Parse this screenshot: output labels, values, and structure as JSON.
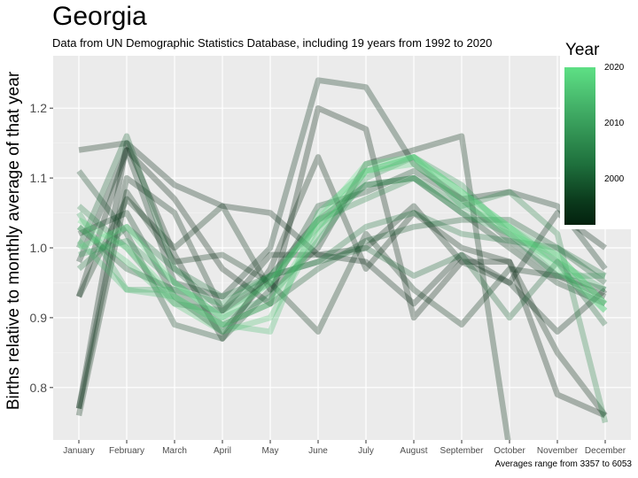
{
  "header": {
    "title": "Georgia",
    "subtitle": "Data from UN Demographic Statistics Database, including 19 years from 1992 to 2020"
  },
  "caption": "Averages range from 3357 to 6053",
  "legend": {
    "title": "Year",
    "ticks": [
      "2020",
      "2010",
      "2000"
    ],
    "color_new": "#5ee085",
    "color_old": "#03210e"
  },
  "chart_data": {
    "type": "line",
    "categories": [
      "January",
      "February",
      "March",
      "April",
      "May",
      "June",
      "July",
      "August",
      "September",
      "October",
      "November",
      "December"
    ],
    "ylabel": "Births relative to monthly average of that year",
    "xlabel": "",
    "ylim": [
      0.725,
      1.275
    ],
    "yticks": [
      0.8,
      0.9,
      1.0,
      1.1,
      1.2
    ],
    "grid": true,
    "legend_position": "right",
    "series": [
      {
        "year": 1992,
        "values": [
          0.93,
          1.14,
          1.07,
          0.97,
          0.92,
          1.2,
          1.17,
          0.9,
          0.98,
          0.98,
          0.79,
          0.76
        ]
      },
      {
        "year": 1993,
        "values": [
          0.77,
          1.15,
          1.09,
          1.06,
          1.05,
          0.99,
          0.98,
          0.92,
          0.99,
          0.95,
          1.05,
          1.0
        ]
      },
      {
        "year": 1994,
        "values": [
          1.14,
          1.15,
          0.99,
          0.87,
          0.97,
          1.13,
          0.97,
          1.05,
          1.0,
          0.98,
          0.85,
          0.76
        ]
      },
      {
        "year": 1995,
        "values": [
          0.77,
          1.1,
          1.05,
          0.91,
          0.99,
          0.99,
          1.0,
          1.06,
          0.98,
          0.95,
          0.88,
          0.94
        ]
      },
      {
        "year": 1996,
        "values": [
          0.93,
          1.07,
          1.0,
          1.06,
          0.94,
          1.0,
          1.12,
          1.14,
          1.16,
          0.71,
          0.72,
          0.72
        ]
      },
      {
        "year": 1997,
        "values": [
          0.98,
          1.14,
          0.95,
          0.93,
          1.0,
          1.24,
          1.23,
          1.12,
          1.07,
          1.08,
          1.06,
          0.97
        ]
      },
      {
        "year": 1998,
        "values": [
          0.76,
          1.08,
          0.98,
          0.99,
          0.95,
          0.88,
          1.02,
          0.94,
          0.89,
          0.97,
          0.96,
          0.93
        ]
      },
      {
        "year": 2000,
        "values": [
          1.02,
          1.05,
          0.93,
          0.88,
          0.96,
          1.04,
          1.09,
          1.1,
          1.05,
          1.0,
          0.95,
          0.92
        ]
      },
      {
        "year": 2002,
        "values": [
          1.11,
          1.02,
          0.89,
          0.87,
          0.94,
          1.06,
          1.08,
          1.11,
          1.07,
          1.01,
          0.96,
          0.94
        ]
      },
      {
        "year": 2004,
        "values": [
          1.03,
          0.97,
          0.94,
          0.89,
          0.92,
          0.97,
          1.01,
          1.03,
          1.04,
          1.04,
          1.0,
          0.95
        ]
      },
      {
        "year": 2006,
        "values": [
          1.0,
          1.16,
          0.97,
          0.91,
          0.96,
          0.98,
          1.0,
          0.96,
          0.99,
          0.9,
          0.98,
          0.89
        ]
      },
      {
        "year": 2008,
        "values": [
          0.97,
          1.03,
          0.97,
          0.93,
          0.96,
          0.98,
          1.03,
          1.05,
          1.02,
          1.01,
          1.0,
          0.96
        ]
      },
      {
        "year": 2010,
        "values": [
          1.06,
          1.0,
          0.92,
          0.91,
          0.95,
          1.04,
          1.07,
          1.1,
          1.06,
          1.08,
          1.02,
          0.75
        ]
      },
      {
        "year": 2012,
        "values": [
          0.99,
          1.01,
          0.95,
          0.9,
          0.93,
          1.01,
          1.1,
          1.13,
          1.09,
          1.02,
          0.96,
          0.96
        ]
      },
      {
        "year": 2014,
        "values": [
          1.05,
          0.94,
          0.94,
          0.92,
          0.96,
          1.03,
          1.09,
          1.1,
          1.05,
          1.02,
          0.98,
          0.94
        ]
      },
      {
        "year": 2016,
        "values": [
          1.01,
          0.94,
          0.93,
          0.89,
          0.88,
          1.05,
          1.11,
          1.13,
          1.06,
          1.03,
          0.98,
          0.91
        ]
      },
      {
        "year": 2017,
        "values": [
          1.03,
          0.98,
          0.92,
          0.88,
          0.9,
          1.02,
          1.11,
          1.13,
          1.08,
          1.03,
          0.99,
          0.92
        ]
      },
      {
        "year": 2019,
        "values": [
          1.04,
          1.0,
          0.93,
          0.89,
          0.92,
          1.03,
          1.11,
          1.12,
          1.07,
          1.02,
          0.99,
          0.92
        ]
      },
      {
        "year": 2020,
        "values": [
          1.0,
          1.03,
          0.95,
          0.9,
          0.95,
          1.04,
          1.12,
          1.13,
          1.08,
          1.03,
          0.97,
          0.91
        ]
      }
    ]
  }
}
